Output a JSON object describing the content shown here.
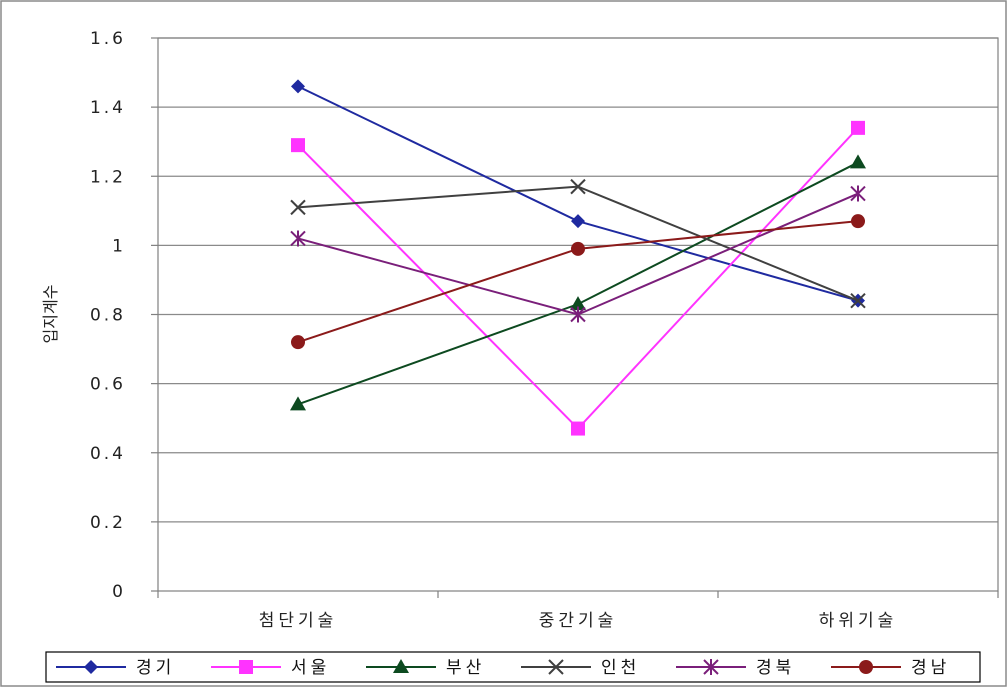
{
  "chart_data": {
    "type": "line",
    "title": "",
    "xlabel": "",
    "ylabel": "입지계수",
    "ylim": [
      0,
      1.6
    ],
    "yticks": [
      0,
      0.2,
      0.4,
      0.6,
      0.8,
      1,
      1.2,
      1.4,
      1.6
    ],
    "ytick_labels": [
      "0",
      "0.2",
      "0.4",
      "0.6",
      "0.8",
      "1",
      "1.2",
      "1.4",
      "1.6"
    ],
    "categories": [
      "첨단기술",
      "중간기술",
      "하위기술"
    ],
    "grid": true,
    "legend_position": "bottom",
    "series": [
      {
        "name": "경기",
        "values": [
          1.46,
          1.07,
          0.84
        ],
        "color": "#1f2aa0",
        "marker": "diamond"
      },
      {
        "name": "서울",
        "values": [
          1.29,
          0.47,
          1.34
        ],
        "color": "#ff33ff",
        "marker": "square"
      },
      {
        "name": "부산",
        "values": [
          0.54,
          0.83,
          1.24
        ],
        "color": "#0d4a20",
        "marker": "triangle"
      },
      {
        "name": "인천",
        "values": [
          1.11,
          1.17,
          0.84
        ],
        "color": "#404040",
        "marker": "x"
      },
      {
        "name": "경북",
        "values": [
          1.02,
          0.8,
          1.15
        ],
        "color": "#7a1f7a",
        "marker": "star"
      },
      {
        "name": "경남",
        "values": [
          0.72,
          0.99,
          1.07
        ],
        "color": "#8b1a1a",
        "marker": "circle"
      }
    ]
  }
}
